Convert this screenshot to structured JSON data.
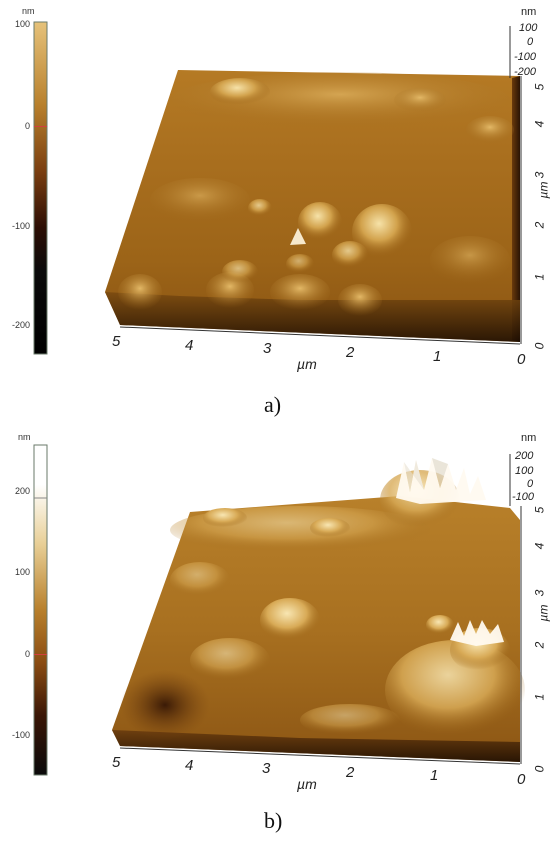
{
  "panels": [
    {
      "caption": "a)",
      "colorbar": {
        "unit": "nm",
        "ticks": [
          "100",
          "0",
          "-100",
          "-200"
        ]
      },
      "z_axis": {
        "unit": "nm",
        "ticks": [
          "100",
          "0",
          "-100",
          "-200"
        ]
      },
      "x_axis": {
        "unit": "µm",
        "ticks": [
          "5",
          "4",
          "3",
          "2",
          "1",
          "0"
        ]
      },
      "y_axis": {
        "unit": "µm",
        "ticks": [
          "0",
          "1",
          "2",
          "3",
          "4",
          "5"
        ]
      }
    },
    {
      "caption": "b)",
      "colorbar": {
        "unit": "nm",
        "ticks": [
          "200",
          "100",
          "0",
          "-100"
        ]
      },
      "z_axis": {
        "unit": "nm",
        "ticks": [
          "200",
          "100",
          "0",
          "-100"
        ]
      },
      "x_axis": {
        "unit": "µm",
        "ticks": [
          "5",
          "4",
          "3",
          "2",
          "1",
          "0"
        ]
      },
      "y_axis": {
        "unit": "µm",
        "ticks": [
          "0",
          "1",
          "2",
          "3",
          "4",
          "5"
        ]
      }
    }
  ],
  "colors": {
    "afm_light": "#f4dca0",
    "afm_mid": "#c08a30",
    "afm_dark": "#5a2a08",
    "afm_black": "#0a0a0a"
  }
}
